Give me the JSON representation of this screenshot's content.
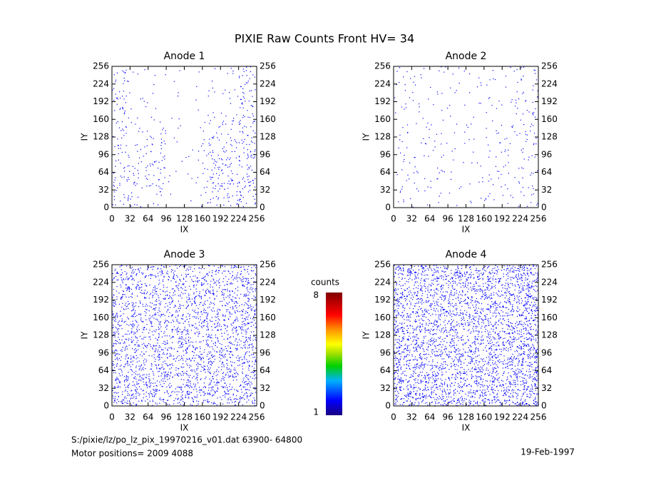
{
  "title": "PIXIE Raw Counts Front HV= 34",
  "footer": {
    "file": "S:/pixie/lz/po_lz_pix_19970216_v01.dat   63900- 64800",
    "motor": "Motor positions= 2009 4088",
    "date": "19-Feb-1997"
  },
  "colorbar": {
    "label": "counts",
    "range": [
      1,
      8
    ],
    "ticks": [
      1,
      8
    ]
  },
  "chart_data": [
    {
      "type": "heatmap",
      "title": "Anode 1",
      "x_label": "IX",
      "y_label": "IY",
      "xlim": [
        0,
        256
      ],
      "ylim": [
        0,
        256
      ],
      "xticks": [
        0,
        32,
        64,
        96,
        128,
        160,
        192,
        224,
        256
      ],
      "yticks": [
        0,
        32,
        64,
        96,
        128,
        160,
        192,
        224,
        256
      ],
      "color": "#0000ff",
      "density": [
        [
          14,
          3,
          2,
          2,
          1,
          2,
          4,
          16
        ],
        [
          14,
          3,
          2,
          2,
          2,
          4,
          6,
          16
        ],
        [
          12,
          4,
          2,
          2,
          1,
          3,
          5,
          16
        ],
        [
          12,
          6,
          8,
          2,
          1,
          8,
          10,
          18
        ],
        [
          12,
          8,
          14,
          2,
          3,
          16,
          16,
          20
        ],
        [
          12,
          10,
          16,
          2,
          3,
          18,
          18,
          20
        ],
        [
          16,
          14,
          14,
          2,
          4,
          20,
          22,
          22
        ],
        [
          14,
          8,
          6,
          1,
          3,
          12,
          14,
          18
        ]
      ]
    },
    {
      "type": "heatmap",
      "title": "Anode 2",
      "x_label": "IX",
      "y_label": "IY",
      "xlim": [
        0,
        256
      ],
      "ylim": [
        0,
        256
      ],
      "xticks": [
        0,
        32,
        64,
        96,
        128,
        160,
        192,
        224,
        256
      ],
      "yticks": [
        0,
        32,
        64,
        96,
        128,
        160,
        192,
        224,
        256
      ],
      "color": "#0000ff",
      "density": [
        [
          6,
          5,
          4,
          4,
          3,
          4,
          5,
          9
        ],
        [
          5,
          4,
          4,
          3,
          3,
          4,
          5,
          9
        ],
        [
          5,
          4,
          3,
          3,
          3,
          4,
          5,
          10
        ],
        [
          5,
          4,
          4,
          3,
          3,
          6,
          6,
          10
        ],
        [
          5,
          5,
          5,
          3,
          3,
          6,
          6,
          9
        ],
        [
          5,
          6,
          6,
          3,
          3,
          5,
          5,
          8
        ],
        [
          6,
          6,
          5,
          3,
          4,
          7,
          6,
          8
        ],
        [
          6,
          4,
          3,
          2,
          3,
          6,
          5,
          8
        ]
      ]
    },
    {
      "type": "heatmap",
      "title": "Anode 3",
      "x_label": "IX",
      "y_label": "IY",
      "xlim": [
        0,
        256
      ],
      "ylim": [
        0,
        256
      ],
      "xticks": [
        0,
        32,
        64,
        96,
        128,
        160,
        192,
        224,
        256
      ],
      "yticks": [
        0,
        32,
        64,
        96,
        128,
        160,
        192,
        224,
        256
      ],
      "color": "#0000ff",
      "density": [
        [
          38,
          36,
          36,
          36,
          36,
          36,
          36,
          40
        ],
        [
          40,
          38,
          38,
          38,
          40,
          40,
          40,
          42
        ],
        [
          40,
          40,
          40,
          40,
          40,
          40,
          42,
          42
        ],
        [
          42,
          40,
          40,
          40,
          42,
          42,
          42,
          44
        ],
        [
          42,
          42,
          42,
          40,
          42,
          42,
          42,
          44
        ],
        [
          44,
          42,
          42,
          40,
          42,
          44,
          44,
          44
        ],
        [
          46,
          44,
          44,
          42,
          44,
          44,
          44,
          44
        ],
        [
          42,
          40,
          40,
          40,
          42,
          40,
          40,
          42
        ]
      ]
    },
    {
      "type": "heatmap",
      "title": "Anode 4",
      "x_label": "IX",
      "y_label": "IY",
      "xlim": [
        0,
        256
      ],
      "ylim": [
        0,
        256
      ],
      "xticks": [
        0,
        32,
        64,
        96,
        128,
        160,
        192,
        224,
        256
      ],
      "yticks": [
        0,
        32,
        64,
        96,
        128,
        160,
        192,
        224,
        256
      ],
      "color": "#0000ff",
      "density": [
        [
          56,
          52,
          52,
          52,
          50,
          52,
          54,
          64
        ],
        [
          54,
          50,
          50,
          50,
          50,
          52,
          54,
          64
        ],
        [
          54,
          50,
          50,
          50,
          50,
          50,
          54,
          64
        ],
        [
          54,
          50,
          50,
          48,
          50,
          50,
          54,
          64
        ],
        [
          56,
          52,
          52,
          50,
          50,
          52,
          54,
          66
        ],
        [
          56,
          54,
          52,
          50,
          52,
          52,
          54,
          66
        ],
        [
          58,
          56,
          54,
          52,
          52,
          54,
          56,
          66
        ],
        [
          58,
          56,
          54,
          52,
          54,
          54,
          56,
          66
        ]
      ]
    }
  ]
}
